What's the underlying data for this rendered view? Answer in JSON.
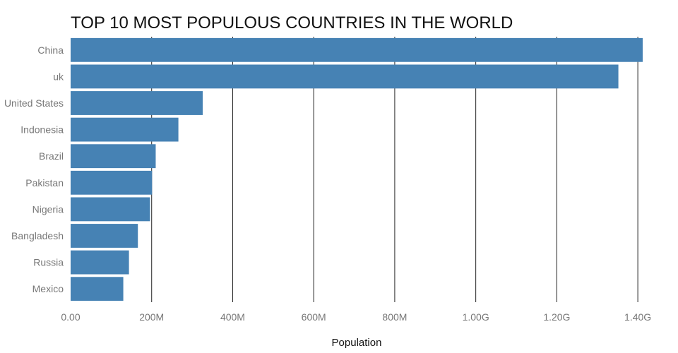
{
  "chart_data": {
    "type": "bar",
    "orientation": "horizontal",
    "title": "TOP 10 MOST POPULOUS COUNTRIES IN THE WORLD",
    "xlabel": "Population",
    "ylabel": "",
    "categories": [
      "China",
      "uk",
      "United States",
      "Indonesia",
      "Brazil",
      "Pakistan",
      "Nigeria",
      "Bangladesh",
      "Russia",
      "Mexico"
    ],
    "values": [
      1412000000,
      1352000000,
      326000000,
      266000000,
      210000000,
      201000000,
      196000000,
      166000000,
      144000000,
      130000000
    ],
    "xlim": [
      0,
      1412000000
    ],
    "x_ticks": [
      0,
      200000000,
      400000000,
      600000000,
      800000000,
      1000000000,
      1200000000,
      1400000000
    ],
    "x_tick_labels": [
      "0.00",
      "200M",
      "400M",
      "600M",
      "800M",
      "1.00G",
      "1.20G",
      "1.40G"
    ],
    "bar_color": "#4682b4",
    "grid": true
  }
}
